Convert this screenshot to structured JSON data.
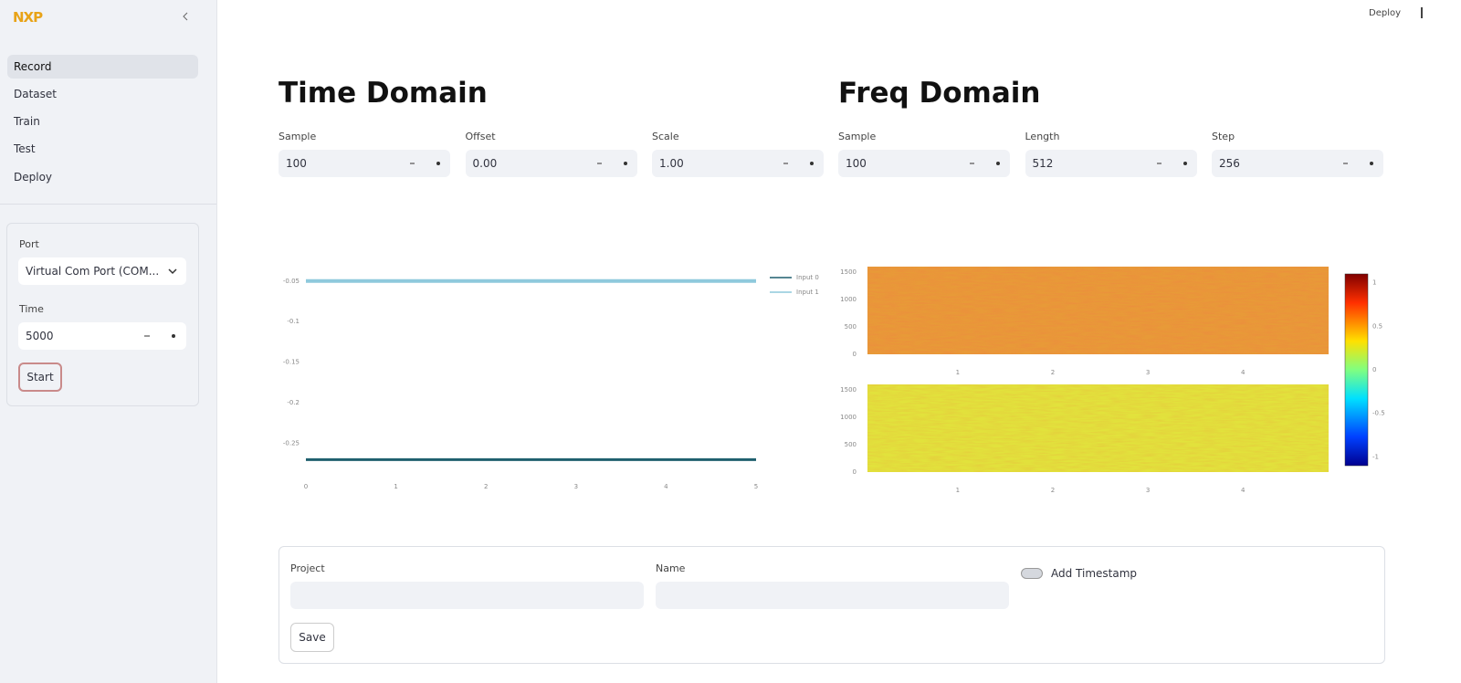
{
  "logo": "NXP",
  "sidebar": {
    "nav": [
      "Record",
      "Dataset",
      "Train",
      "Test",
      "Deploy"
    ],
    "port_label": "Port",
    "port_value": "Virtual Com Port (COM...",
    "time_label": "Time",
    "time_value": "5000",
    "start": "Start"
  },
  "header": {
    "deploy": "Deploy"
  },
  "time_domain": {
    "title": "Time Domain",
    "inputs": [
      {
        "label": "Sample",
        "value": "100"
      },
      {
        "label": "Offset",
        "value": "0.00"
      },
      {
        "label": "Scale",
        "value": "1.00"
      }
    ]
  },
  "freq_domain": {
    "title": "Freq Domain",
    "inputs": [
      {
        "label": "Sample",
        "value": "100"
      },
      {
        "label": "Length",
        "value": "512"
      },
      {
        "label": "Step",
        "value": "256"
      }
    ]
  },
  "chart_data": [
    {
      "type": "line",
      "x": [
        0,
        1,
        2,
        3,
        4,
        5
      ],
      "series": [
        {
          "name": "Input 0",
          "color": "#1f5f6e",
          "values": [
            -0.27,
            -0.27,
            -0.27,
            -0.27,
            -0.27,
            -0.27
          ]
        },
        {
          "name": "Input 1",
          "color": "#8ec9dc",
          "values": [
            -0.05,
            -0.05,
            -0.05,
            -0.05,
            -0.05,
            -0.05
          ]
        }
      ],
      "xlim": [
        0,
        5
      ],
      "xticks": [
        0,
        1,
        2,
        3,
        4,
        5
      ],
      "ylim": [
        -0.3,
        -0.03
      ],
      "yticks": [
        -0.05,
        -0.1,
        -0.15,
        -0.2,
        -0.25
      ]
    },
    {
      "type": "heatmap",
      "xlim": [
        0.05,
        4.9
      ],
      "xticks": [
        1,
        2,
        3,
        4
      ],
      "ylim": [
        0,
        1600
      ],
      "yticks": [
        0,
        500,
        1000,
        1500
      ],
      "colorbar_lim": [
        -1.1,
        1.1
      ],
      "colorbar_ticks": [
        -1,
        -0.5,
        0,
        0.5,
        1
      ]
    }
  ],
  "save_form": {
    "project_label": "Project",
    "name_label": "Name",
    "timestamp": "Add Timestamp",
    "save": "Save"
  }
}
